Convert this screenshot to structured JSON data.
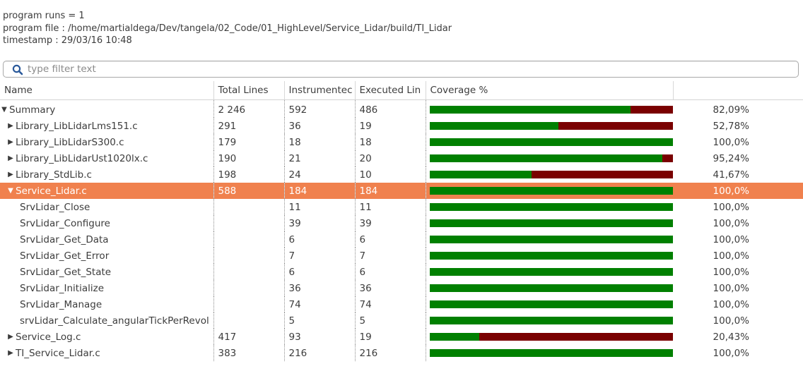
{
  "info": {
    "runs": "program runs = 1",
    "file": "program file : /home/martialdega/Dev/tangela/02_Code/01_HighLevel/Service_Lidar/build/TI_Lidar",
    "timestamp": "timestamp : 29/03/16 10:48"
  },
  "filter": {
    "placeholder": "type filter text",
    "value": ""
  },
  "columns": [
    "Name",
    "Total Lines",
    "Instrumentec",
    "Executed Lin",
    "Coverage %",
    ""
  ],
  "colors": {
    "covered": "#008000",
    "uncovered": "#7a0000",
    "selected_row": "#f0814e"
  },
  "rows": [
    {
      "name": "Summary",
      "indent": 0,
      "toggle": "expanded",
      "total": "2 246",
      "instr": "592",
      "exec": "486",
      "coverage": 0.8209,
      "pct": "82,09%",
      "selected": false
    },
    {
      "name": "Library_LibLidarLms151.c",
      "indent": 1,
      "toggle": "collapsed",
      "total": "291",
      "instr": "36",
      "exec": "19",
      "coverage": 0.5278,
      "pct": "52,78%",
      "selected": false
    },
    {
      "name": "Library_LibLidarS300.c",
      "indent": 1,
      "toggle": "collapsed",
      "total": "179",
      "instr": "18",
      "exec": "18",
      "coverage": 1.0,
      "pct": "100,0%",
      "selected": false
    },
    {
      "name": "Library_LibLidarUst1020lx.c",
      "indent": 1,
      "toggle": "collapsed",
      "total": "190",
      "instr": "21",
      "exec": "20",
      "coverage": 0.9524,
      "pct": "95,24%",
      "selected": false
    },
    {
      "name": "Library_StdLib.c",
      "indent": 1,
      "toggle": "collapsed",
      "total": "198",
      "instr": "24",
      "exec": "10",
      "coverage": 0.4167,
      "pct": "41,67%",
      "selected": false
    },
    {
      "name": "Service_Lidar.c",
      "indent": 1,
      "toggle": "expanded",
      "total": "588",
      "instr": "184",
      "exec": "184",
      "coverage": 1.0,
      "pct": "100,0%",
      "selected": true
    },
    {
      "name": "SrvLidar_Close",
      "indent": 2,
      "toggle": "none",
      "total": "",
      "instr": "11",
      "exec": "11",
      "coverage": 1.0,
      "pct": "100,0%",
      "selected": false
    },
    {
      "name": "SrvLidar_Configure",
      "indent": 2,
      "toggle": "none",
      "total": "",
      "instr": "39",
      "exec": "39",
      "coverage": 1.0,
      "pct": "100,0%",
      "selected": false
    },
    {
      "name": "SrvLidar_Get_Data",
      "indent": 2,
      "toggle": "none",
      "total": "",
      "instr": "6",
      "exec": "6",
      "coverage": 1.0,
      "pct": "100,0%",
      "selected": false
    },
    {
      "name": "SrvLidar_Get_Error",
      "indent": 2,
      "toggle": "none",
      "total": "",
      "instr": "7",
      "exec": "7",
      "coverage": 1.0,
      "pct": "100,0%",
      "selected": false
    },
    {
      "name": "SrvLidar_Get_State",
      "indent": 2,
      "toggle": "none",
      "total": "",
      "instr": "6",
      "exec": "6",
      "coverage": 1.0,
      "pct": "100,0%",
      "selected": false
    },
    {
      "name": "SrvLidar_Initialize",
      "indent": 2,
      "toggle": "none",
      "total": "",
      "instr": "36",
      "exec": "36",
      "coverage": 1.0,
      "pct": "100,0%",
      "selected": false
    },
    {
      "name": "SrvLidar_Manage",
      "indent": 2,
      "toggle": "none",
      "total": "",
      "instr": "74",
      "exec": "74",
      "coverage": 1.0,
      "pct": "100,0%",
      "selected": false
    },
    {
      "name": "srvLidar_Calculate_angularTickPerRevol",
      "indent": 2,
      "toggle": "none",
      "total": "",
      "instr": "5",
      "exec": "5",
      "coverage": 1.0,
      "pct": "100,0%",
      "selected": false
    },
    {
      "name": "Service_Log.c",
      "indent": 1,
      "toggle": "collapsed",
      "total": "417",
      "instr": "93",
      "exec": "19",
      "coverage": 0.2043,
      "pct": "20,43%",
      "selected": false
    },
    {
      "name": "TI_Service_Lidar.c",
      "indent": 1,
      "toggle": "collapsed",
      "total": "383",
      "instr": "216",
      "exec": "216",
      "coverage": 1.0,
      "pct": "100,0%",
      "selected": false
    }
  ]
}
